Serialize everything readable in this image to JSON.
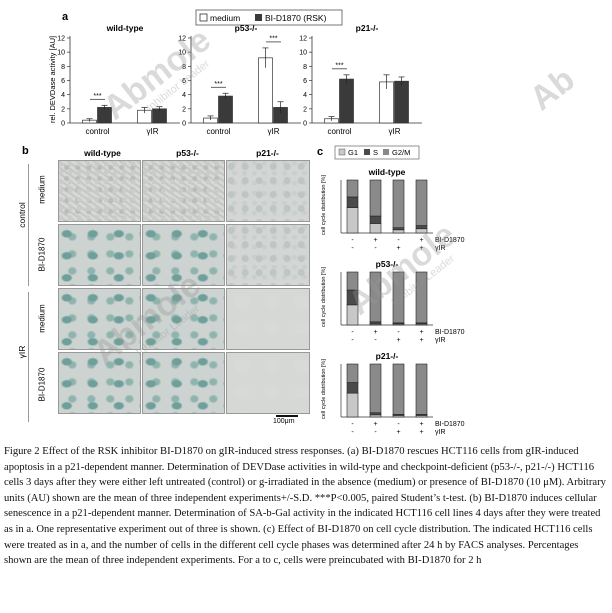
{
  "panel_a": {
    "label": "a",
    "legend": {
      "medium": "medium",
      "bi": "BI-D1870 (RSK)"
    },
    "ylabel": "rel. DEVDase activity [AU]",
    "significance": "***",
    "colors": {
      "medium": "#ffffff",
      "bi": "#3a3a3a"
    }
  },
  "panel_b": {
    "label": "b",
    "col_headers": [
      "wild-type",
      "p53-/-",
      "p21-/-"
    ],
    "row_group_labels": [
      "control",
      "γIR"
    ],
    "row_labels": [
      "medium",
      "BI-D1870",
      "medium",
      "BI-D1870"
    ],
    "scale_bar": "100μm"
  },
  "panel_c": {
    "label": "c",
    "legend": [
      "G1",
      "S",
      "G2/M"
    ],
    "ylabel": "cell cycle distribution [%]",
    "row1_label": "BI-D1870",
    "row2_label": "γIR",
    "row1_signs": [
      "-",
      "+",
      "-",
      "+"
    ],
    "row2_signs": [
      "-",
      "-",
      "+",
      "+"
    ],
    "colors": {
      "G1": "#c8c8c8",
      "S": "#4a4a4a",
      "G2M": "#8a8a8a"
    }
  },
  "chart_data": [
    {
      "type": "bar",
      "title": "wild-type",
      "categories": [
        "control",
        "γIR"
      ],
      "ylim": [
        0,
        12
      ],
      "yticks": [
        0,
        2,
        4,
        6,
        8,
        10,
        12
      ],
      "series": [
        {
          "name": "medium",
          "values": [
            0.4,
            1.8
          ],
          "errors": [
            0.2,
            0.4
          ]
        },
        {
          "name": "BI-D1870 (RSK)",
          "values": [
            2.2,
            2.0
          ],
          "errors": [
            0.3,
            0.3
          ]
        }
      ],
      "sig_on": [
        "control"
      ]
    },
    {
      "type": "bar",
      "title": "p53-/-",
      "categories": [
        "control",
        "γIR"
      ],
      "ylim": [
        0,
        12
      ],
      "yticks": [
        0,
        2,
        4,
        6,
        8,
        10,
        12
      ],
      "series": [
        {
          "name": "medium",
          "values": [
            0.7,
            9.2
          ],
          "errors": [
            0.3,
            1.4
          ]
        },
        {
          "name": "BI-D1870 (RSK)",
          "values": [
            3.8,
            2.2
          ],
          "errors": [
            0.4,
            0.8
          ]
        }
      ],
      "sig_on": [
        "control",
        "γIR"
      ]
    },
    {
      "type": "bar",
      "title": "p21-/-",
      "categories": [
        "control",
        "γIR"
      ],
      "ylim": [
        0,
        12
      ],
      "yticks": [
        0,
        2,
        4,
        6,
        8,
        10,
        12
      ],
      "series": [
        {
          "name": "medium",
          "values": [
            0.6,
            5.8
          ],
          "errors": [
            0.3,
            1.0
          ]
        },
        {
          "name": "BI-D1870 (RSK)",
          "values": [
            6.2,
            5.9
          ],
          "errors": [
            0.6,
            0.6
          ]
        }
      ],
      "sig_on": [
        "control"
      ]
    },
    {
      "type": "bar",
      "stacked": true,
      "title": "wild-type",
      "categories": [
        "1",
        "2",
        "3",
        "4"
      ],
      "ylim": [
        0,
        100
      ],
      "series": [
        {
          "name": "G1",
          "values": [
            48,
            18,
            6,
            8
          ]
        },
        {
          "name": "S",
          "values": [
            20,
            14,
            4,
            6
          ]
        },
        {
          "name": "G2/M",
          "values": [
            32,
            68,
            90,
            86
          ]
        }
      ]
    },
    {
      "type": "bar",
      "stacked": true,
      "title": "p53-/-",
      "categories": [
        "1",
        "2",
        "3",
        "4"
      ],
      "ylim": [
        0,
        100
      ],
      "series": [
        {
          "name": "G1",
          "values": [
            38,
            2,
            2,
            2
          ]
        },
        {
          "name": "S",
          "values": [
            28,
            4,
            2,
            2
          ]
        },
        {
          "name": "G2/M",
          "values": [
            34,
            94,
            96,
            96
          ]
        }
      ]
    },
    {
      "type": "bar",
      "stacked": true,
      "title": "p21-/-",
      "categories": [
        "1",
        "2",
        "3",
        "4"
      ],
      "ylim": [
        0,
        100
      ],
      "series": [
        {
          "name": "G1",
          "values": [
            45,
            4,
            3,
            3
          ]
        },
        {
          "name": "S",
          "values": [
            20,
            4,
            2,
            2
          ]
        },
        {
          "name": "G2/M",
          "values": [
            35,
            92,
            95,
            95
          ]
        }
      ]
    }
  ],
  "caption": "Figure 2 Effect of the RSK inhibitor BI-D1870 on gIR-induced stress responses. (a) BI-D1870 rescues HCT116 cells from gIR-induced apoptosis in a p21-dependent manner. Determination of DEVDase activities in wild-type and checkpoint-deficient (p53-/-, p21-/-) HCT116 cells 3 days after they were either left untreated (control) or g-irradiated in the absence (medium) or presence of BI-D1870 (10 μM). Arbitrary units (AU) shown are the mean of three independent experiments+/-S.D. ***P<0.005, paired Student’s t-test. (b) BI-D1870 induces cellular senescence in a p21-dependent manner. Determination of SA-b-Gal activity in the indicated HCT116 cell lines 4 days after they were treated as in a. One representative experiment out of three is shown. (c) Effect of BI-D1870 on cell cycle distribution. The indicated HCT116 cells were treated as in a, and the number of cells in the different cell cycle phases was determined after 24 h by FACS analyses. Percentages shown are the mean of three independent experiments. For a to c, cells were preincubated with BI-D1870 for 2 h",
  "watermark": {
    "brand": "Abmole",
    "tagline": "Inhibitor Leader"
  }
}
